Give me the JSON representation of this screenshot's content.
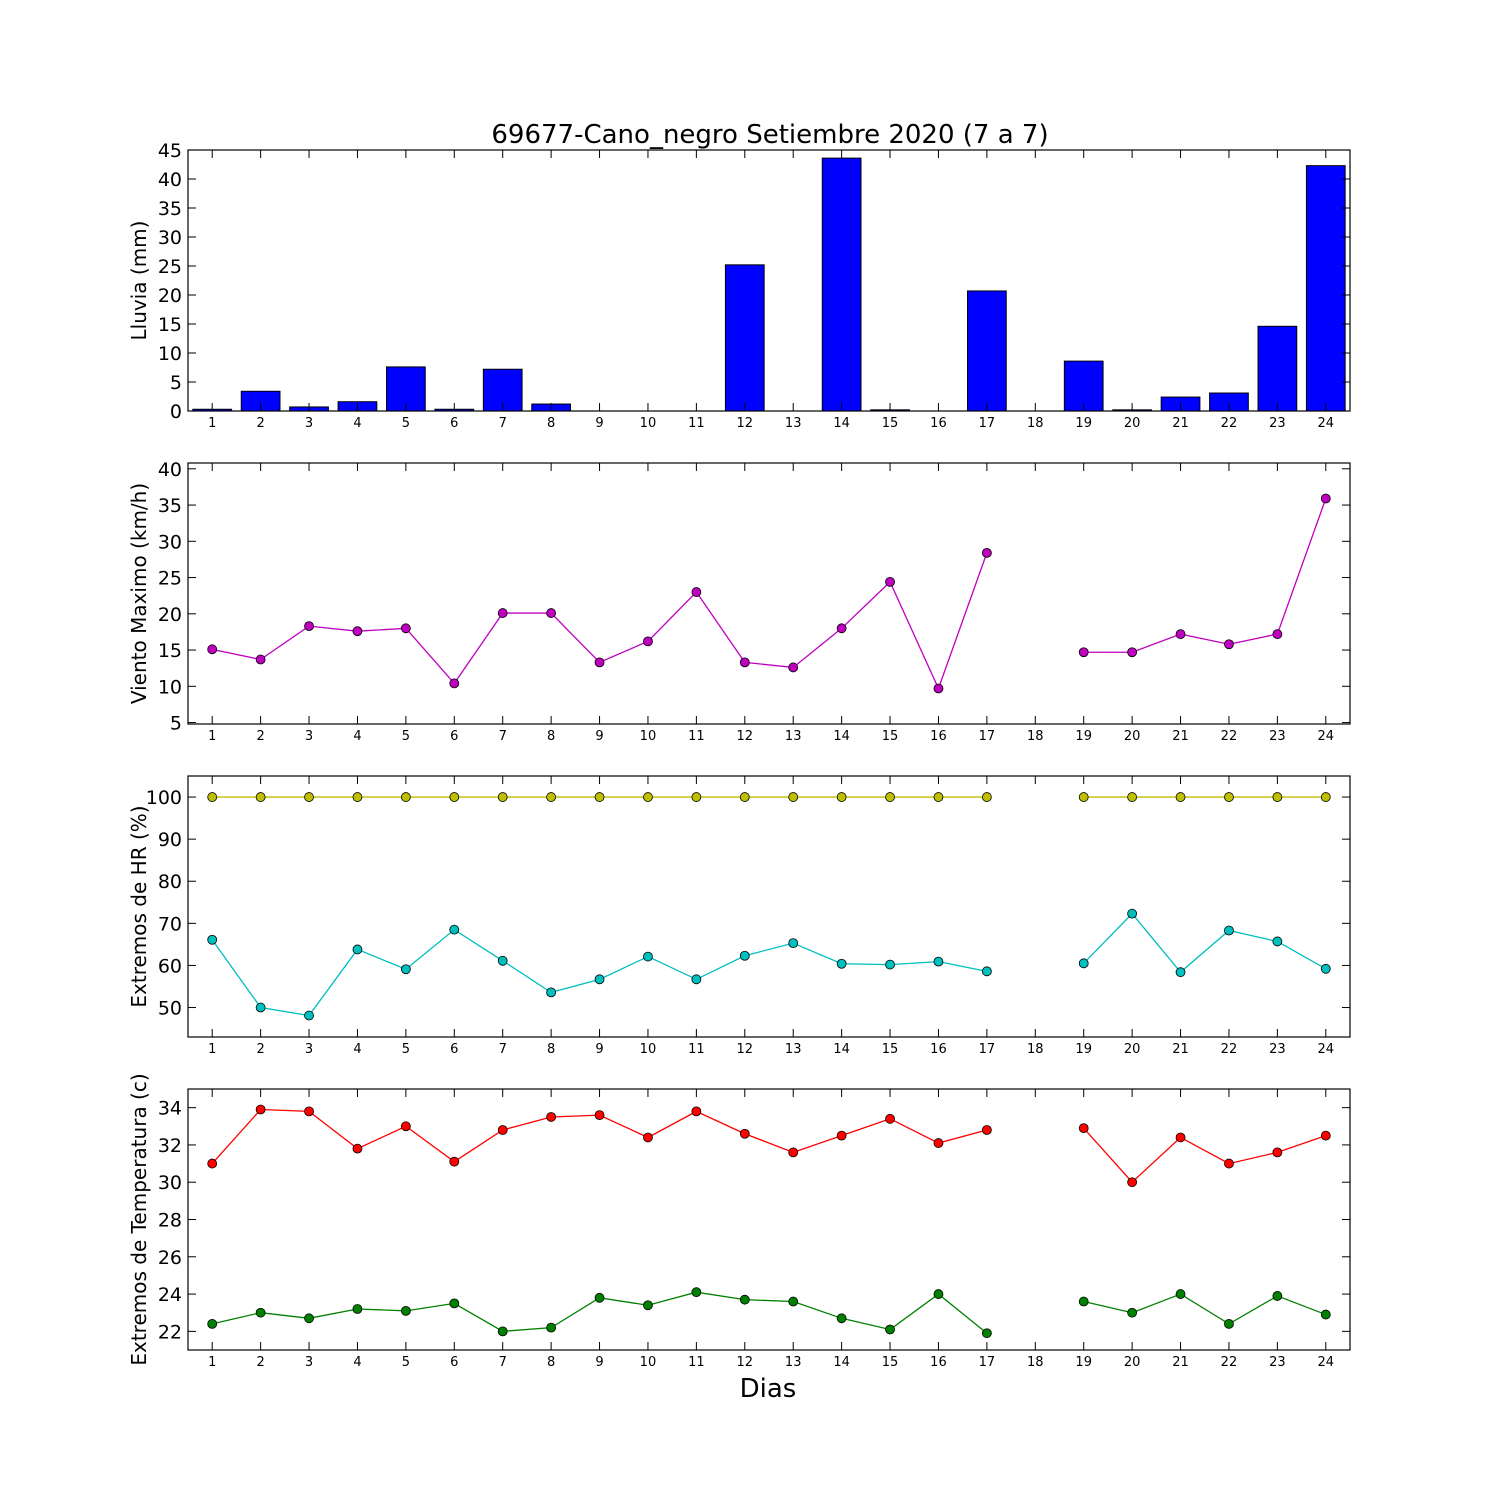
{
  "chart_data": [
    {
      "type": "bar",
      "title": "69677-Cano_negro Setiembre 2020  (7 a 7)",
      "ylabel": "Lluvia (mm)",
      "xlabel": "",
      "categories": [
        "1",
        "2",
        "3",
        "4",
        "5",
        "6",
        "7",
        "8",
        "9",
        "10",
        "11",
        "12",
        "13",
        "14",
        "15",
        "16",
        "17",
        "18",
        "19",
        "20",
        "21",
        "22",
        "23",
        "24"
      ],
      "values": [
        0.3,
        3.4,
        0.7,
        1.6,
        7.6,
        0.3,
        7.2,
        1.2,
        0,
        0,
        0,
        25.2,
        0,
        43.6,
        0.2,
        0,
        20.7,
        0,
        8.6,
        0.2,
        2.4,
        3.1,
        14.6,
        42.3
      ],
      "ylim": [
        0,
        45
      ],
      "yticks": [
        "0",
        "5",
        "10",
        "15",
        "20",
        "25",
        "30",
        "35",
        "40",
        "45"
      ],
      "color": "#0000ff"
    },
    {
      "type": "line",
      "ylabel": "Viento Maximo (km/h)",
      "xlabel": "",
      "categories": [
        "1",
        "2",
        "3",
        "4",
        "5",
        "6",
        "7",
        "8",
        "9",
        "10",
        "11",
        "12",
        "13",
        "14",
        "15",
        "16",
        "17",
        "18",
        "19",
        "20",
        "21",
        "22",
        "23",
        "24"
      ],
      "series": [
        {
          "color": "#bf00bf",
          "values": [
            15.1,
            13.7,
            18.3,
            17.6,
            18.0,
            10.4,
            20.1,
            20.1,
            13.3,
            16.2,
            23.0,
            13.3,
            12.6,
            18.0,
            24.4,
            9.7,
            28.4,
            null,
            14.7,
            14.7,
            17.2,
            15.8,
            17.2,
            35.9
          ]
        }
      ],
      "ylim": [
        4.8,
        40.8
      ],
      "yticks": [
        "5",
        "10",
        "15",
        "20",
        "25",
        "30",
        "35",
        "40"
      ]
    },
    {
      "type": "line",
      "ylabel": "Extremos de HR (%)",
      "xlabel": "",
      "categories": [
        "1",
        "2",
        "3",
        "4",
        "5",
        "6",
        "7",
        "8",
        "9",
        "10",
        "11",
        "12",
        "13",
        "14",
        "15",
        "16",
        "17",
        "18",
        "19",
        "20",
        "21",
        "22",
        "23",
        "24"
      ],
      "series": [
        {
          "color": "#bfbf00",
          "values": [
            100,
            100,
            100,
            100,
            100,
            100,
            100,
            100,
            100,
            100,
            100,
            100,
            100,
            100,
            100,
            100,
            100,
            null,
            100,
            100,
            100,
            100,
            100,
            100
          ]
        },
        {
          "color": "#00bfbf",
          "values": [
            66.1,
            50.0,
            48.1,
            63.8,
            59.1,
            68.5,
            61.1,
            53.6,
            56.7,
            62.1,
            56.7,
            62.3,
            65.3,
            60.4,
            60.2,
            60.9,
            58.6,
            null,
            60.5,
            72.3,
            58.4,
            68.3,
            65.7,
            59.2
          ]
        }
      ],
      "ylim": [
        43,
        105
      ],
      "yticks": [
        "50",
        "60",
        "70",
        "80",
        "90",
        "100"
      ]
    },
    {
      "type": "line",
      "ylabel": "Extremos de Temperatura (c)",
      "xlabel": "Dias",
      "categories": [
        "1",
        "2",
        "3",
        "4",
        "5",
        "6",
        "7",
        "8",
        "9",
        "10",
        "11",
        "12",
        "13",
        "14",
        "15",
        "16",
        "17",
        "18",
        "19",
        "20",
        "21",
        "22",
        "23",
        "24"
      ],
      "series": [
        {
          "color": "#ff0000",
          "values": [
            31.0,
            33.9,
            33.8,
            31.8,
            33.0,
            31.1,
            32.8,
            33.5,
            33.6,
            32.4,
            33.8,
            32.6,
            31.6,
            32.5,
            33.4,
            32.1,
            32.8,
            null,
            32.9,
            30.0,
            32.4,
            31.0,
            31.6,
            32.5
          ]
        },
        {
          "color": "#008000",
          "values": [
            22.4,
            23.0,
            22.7,
            23.2,
            23.1,
            23.5,
            22.0,
            22.2,
            23.8,
            23.4,
            24.1,
            23.7,
            23.6,
            22.7,
            22.1,
            24.0,
            21.9,
            null,
            23.6,
            23.0,
            24.0,
            22.4,
            23.9,
            22.9
          ]
        }
      ],
      "ylim": [
        21,
        35
      ],
      "yticks": [
        "22",
        "24",
        "26",
        "28",
        "30",
        "32",
        "34"
      ]
    }
  ]
}
